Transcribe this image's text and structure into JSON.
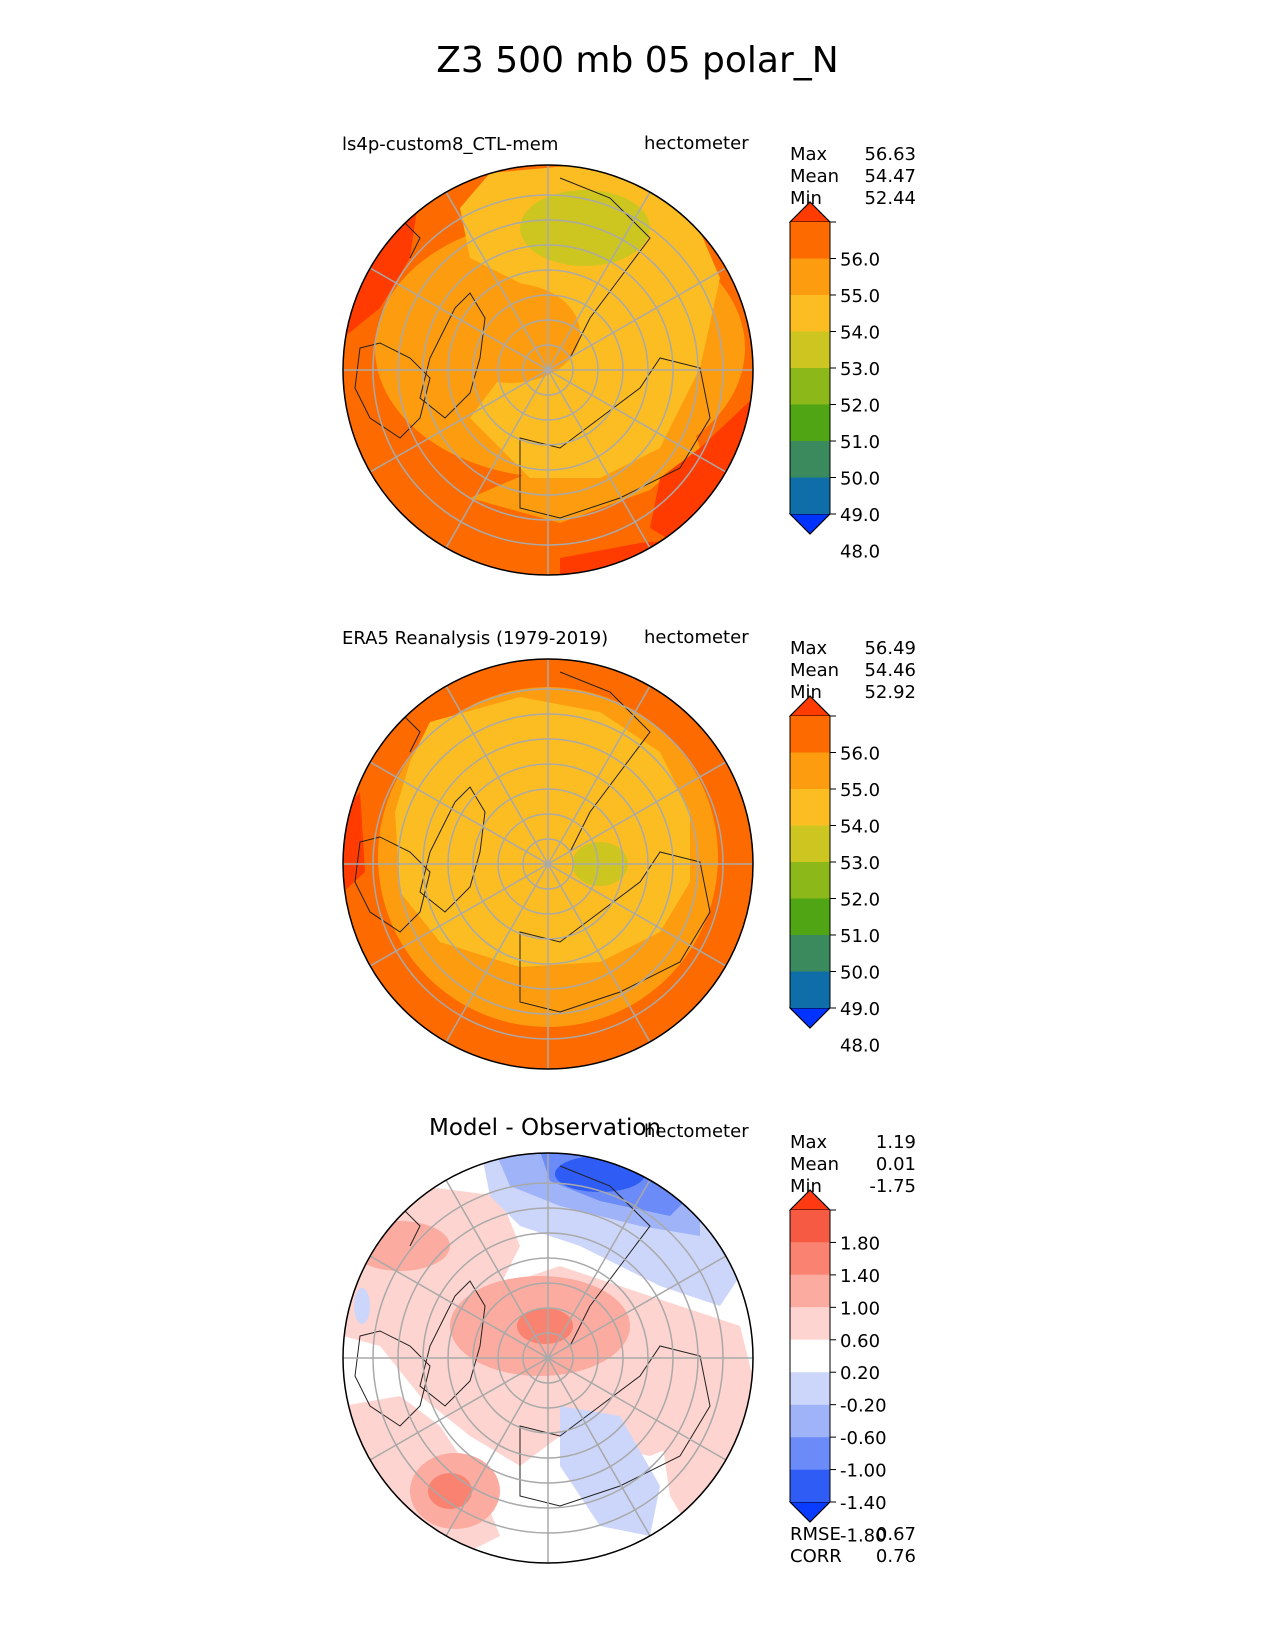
{
  "figure": {
    "title": "Z3 500 mb 05 polar_N"
  },
  "chart_data": [
    {
      "type": "heatmap",
      "projection": "north-polar-stereographic",
      "title": "",
      "left_label": "ls4p-custom8_CTL-mem",
      "units": "hectometer",
      "stats": {
        "Max": "56.63",
        "Mean": "54.47",
        "Min": "52.44"
      },
      "colorbar": {
        "levels": [
          47,
          48,
          49,
          50,
          51,
          52,
          53,
          54,
          55,
          56,
          57
        ],
        "tick_labels": [
          "48.0",
          "49.0",
          "50.0",
          "51.0",
          "52.0",
          "53.0",
          "54.0",
          "55.0",
          "56.0"
        ],
        "colors": [
          "#0033ff",
          "#0f6ea8",
          "#3a8a5e",
          "#4fa514",
          "#8db81a",
          "#cdc620",
          "#fcbd22",
          "#fd9c0f",
          "#fd6a00",
          "#ff3b00"
        ],
        "extend": "both"
      }
    },
    {
      "type": "heatmap",
      "projection": "north-polar-stereographic",
      "title": "",
      "left_label": "ERA5 Reanalysis (1979-2019)",
      "units": "hectometer",
      "stats": {
        "Max": "56.49",
        "Mean": "54.46",
        "Min": "52.92"
      },
      "colorbar": {
        "levels": [
          47,
          48,
          49,
          50,
          51,
          52,
          53,
          54,
          55,
          56,
          57
        ],
        "tick_labels": [
          "48.0",
          "49.0",
          "50.0",
          "51.0",
          "52.0",
          "53.0",
          "54.0",
          "55.0",
          "56.0"
        ],
        "colors": [
          "#0033ff",
          "#0f6ea8",
          "#3a8a5e",
          "#4fa514",
          "#8db81a",
          "#cdc620",
          "#fcbd22",
          "#fd9c0f",
          "#fd6a00",
          "#ff3b00"
        ],
        "extend": "both"
      }
    },
    {
      "type": "heatmap",
      "projection": "north-polar-stereographic",
      "title": "Model - Observation",
      "left_label": "",
      "units": "hectometer",
      "stats": {
        "Max": "1.19",
        "Mean": "0.01",
        "Min": "-1.75"
      },
      "metrics": {
        "RMSE": "0.67",
        "CORR": "0.76"
      },
      "colorbar": {
        "levels": [
          -2.2,
          -1.8,
          -1.4,
          -1.0,
          -0.6,
          -0.2,
          0.2,
          0.6,
          1.0,
          1.4,
          1.8,
          2.2
        ],
        "tick_labels": [
          "-1.80",
          "-1.40",
          "-1.00",
          "-0.60",
          "-0.20",
          "0.20",
          "0.60",
          "1.00",
          "1.40",
          "1.80"
        ],
        "colors": [
          "#0a3cff",
          "#2e5cf5",
          "#6a8bf8",
          "#9fb3f8",
          "#ccd6fb",
          "#ffffff",
          "#fdd4cf",
          "#fbab9f",
          "#fa8270",
          "#f65a42",
          "#ff3a12"
        ],
        "extend": "both"
      }
    }
  ]
}
